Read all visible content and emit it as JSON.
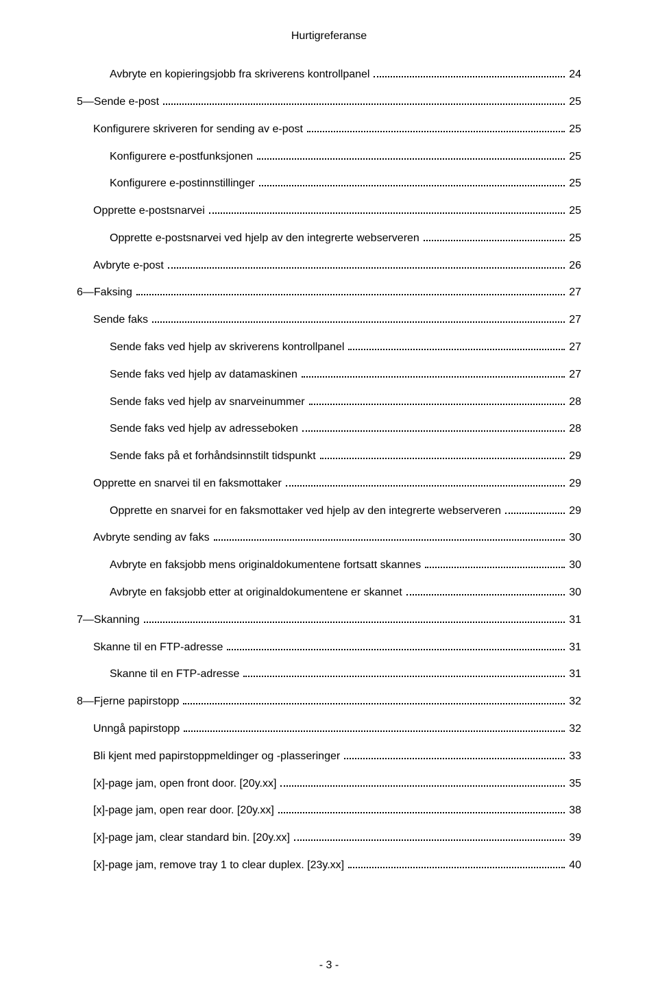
{
  "document": {
    "title": "Hurtigreferanse",
    "page_number": "- 3 -"
  },
  "toc": {
    "entries": [
      {
        "indent": 2,
        "label": "Avbryte en kopieringsjobb fra skriverens kontrollpanel",
        "page": "24"
      },
      {
        "indent": 0,
        "label": "5—Sende e-post",
        "page": "25"
      },
      {
        "indent": 1,
        "label": "Konfigurere skriveren for sending av e-post",
        "page": "25"
      },
      {
        "indent": 2,
        "label": "Konfigurere e-postfunksjonen",
        "page": "25"
      },
      {
        "indent": 2,
        "label": "Konfigurere e-postinnstillinger",
        "page": "25"
      },
      {
        "indent": 1,
        "label": "Opprette e-postsnarvei",
        "page": "25"
      },
      {
        "indent": 2,
        "label": "Opprette e-postsnarvei ved hjelp av den integrerte webserveren",
        "page": "25"
      },
      {
        "indent": 1,
        "label": "Avbryte e-post",
        "page": "26"
      },
      {
        "indent": 0,
        "label": "6—Faksing",
        "page": "27"
      },
      {
        "indent": 1,
        "label": "Sende faks",
        "page": "27"
      },
      {
        "indent": 2,
        "label": "Sende faks ved hjelp av skriverens kontrollpanel",
        "page": "27"
      },
      {
        "indent": 2,
        "label": "Sende faks ved hjelp av datamaskinen",
        "page": "27"
      },
      {
        "indent": 2,
        "label": "Sende faks ved hjelp av snarveinummer",
        "page": "28"
      },
      {
        "indent": 2,
        "label": "Sende faks ved hjelp av adresseboken",
        "page": "28"
      },
      {
        "indent": 2,
        "label": "Sende faks på et forhåndsinnstilt tidspunkt",
        "page": "29"
      },
      {
        "indent": 1,
        "label": "Opprette en snarvei til en faksmottaker",
        "page": "29"
      },
      {
        "indent": 2,
        "label": "Opprette en snarvei for en faksmottaker ved hjelp av den integrerte webserveren",
        "page": "29"
      },
      {
        "indent": 1,
        "label": "Avbryte sending av faks",
        "page": "30"
      },
      {
        "indent": 2,
        "label": "Avbryte en faksjobb mens originaldokumentene fortsatt skannes",
        "page": "30"
      },
      {
        "indent": 2,
        "label": "Avbryte en faksjobb etter at originaldokumentene er skannet",
        "page": "30"
      },
      {
        "indent": 0,
        "label": "7—Skanning",
        "page": "31"
      },
      {
        "indent": 1,
        "label": "Skanne til en FTP-adresse",
        "page": "31"
      },
      {
        "indent": 2,
        "label": "Skanne til en FTP-adresse",
        "page": "31"
      },
      {
        "indent": 0,
        "label": "8—Fjerne papirstopp",
        "page": "32"
      },
      {
        "indent": 1,
        "label": "Unngå papirstopp",
        "page": "32"
      },
      {
        "indent": 1,
        "label": "Bli kjent med papirstoppmeldinger og -plasseringer",
        "page": "33"
      },
      {
        "indent": 1,
        "label": "[x]-page jam, open front door. [20y.xx]",
        "page": "35"
      },
      {
        "indent": 1,
        "label": "[x]-page jam, open rear door. [20y.xx]",
        "page": "38"
      },
      {
        "indent": 1,
        "label": "[x]-page jam, clear standard bin. [20y.xx]",
        "page": "39"
      },
      {
        "indent": 1,
        "label": "[x]-page jam, remove tray 1 to clear duplex. [23y.xx]",
        "page": "40"
      }
    ]
  }
}
